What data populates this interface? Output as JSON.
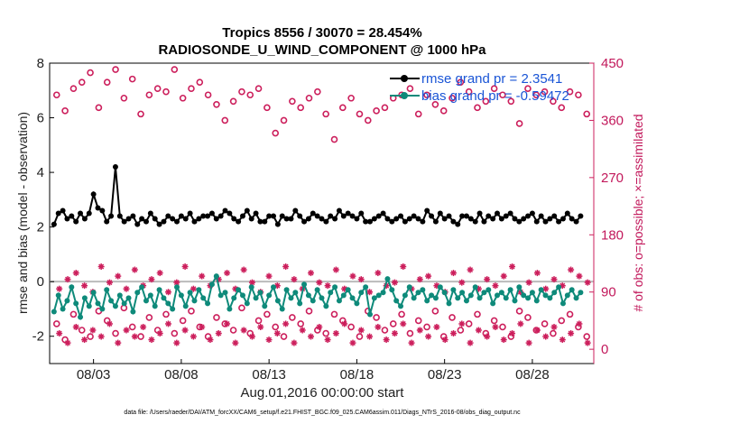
{
  "chart_data": {
    "type": "line",
    "title_line1": "Tropics 8556 / 30070 = 28.454%",
    "title_line2": "RADIOSONDE_U_WIND_COMPONENT @ 1000 hPa",
    "ylabel_left": "rmse and bias (model - observation)",
    "ylabel_right": "# of obs: o=possible; ×=assimilated",
    "xlabel": "Aug.01,2016 00:00:00 start",
    "footnote": "data file: /Users/raeder/DAI/ATM_forcXX/CAM6_setup/f.e21.FHIST_BGC.f09_025.CAM6assim.011/Diags_NTrS_2016-08/obs_diag_output.nc",
    "x_range_days": [
      0.5,
      31.5
    ],
    "x_ticks": [
      {
        "label": "08/03",
        "day": 3
      },
      {
        "label": "08/08",
        "day": 8
      },
      {
        "label": "08/13",
        "day": 13
      },
      {
        "label": "08/18",
        "day": 18
      },
      {
        "label": "08/23",
        "day": 23
      },
      {
        "label": "08/28",
        "day": 28
      }
    ],
    "y_left_range": [
      -3,
      8
    ],
    "y_left_ticks": [
      "-2",
      "0",
      "2",
      "4",
      "6",
      "8"
    ],
    "y_right_range": [
      -22.5,
      450
    ],
    "y_right_ticks": [
      "0",
      "90",
      "180",
      "270",
      "360",
      "450"
    ],
    "colors": {
      "rmse": "#000000",
      "bias": "#0e8a7a",
      "obs": "#cc1f5c",
      "zero_line": "#bbbbbb",
      "legend_text": "#1a55d6"
    },
    "legend": [
      {
        "name": "rmse grand pr = 2.3541",
        "color": "#000000"
      },
      {
        "name": "bias grand pr = -0.59472",
        "color": "#0e8a7a"
      }
    ],
    "series_x_start_day": 0.75,
    "series_x_step_day": 0.25,
    "series": [
      {
        "name": "rmse",
        "values": [
          2.1,
          2.5,
          2.6,
          2.3,
          2.4,
          2.2,
          2.5,
          2.3,
          2.5,
          3.2,
          2.7,
          2.6,
          2.2,
          2.4,
          4.2,
          2.4,
          2.2,
          2.3,
          2.4,
          2.1,
          2.3,
          2.2,
          2.5,
          2.3,
          2.1,
          2.2,
          2.4,
          2.3,
          2.2,
          2.4,
          2.3,
          2.5,
          2.2,
          2.3,
          2.4,
          2.4,
          2.5,
          2.3,
          2.4,
          2.6,
          2.5,
          2.3,
          2.2,
          2.4,
          2.6,
          2.3,
          2.5,
          2.2,
          2.2,
          2.4,
          2.4,
          2.1,
          2.4,
          2.3,
          2.3,
          2.6,
          2.4,
          2.2,
          2.3,
          2.5,
          2.4,
          2.3,
          2.2,
          2.4,
          2.3,
          2.6,
          2.4,
          2.5,
          2.4,
          2.3,
          2.5,
          2.2,
          2.2,
          2.3,
          2.4,
          2.5,
          2.3,
          2.2,
          2.3,
          2.4,
          2.2,
          2.3,
          2.4,
          2.3,
          2.2,
          2.6,
          2.4,
          2.2,
          2.5,
          2.3,
          2.4,
          2.2,
          2.1,
          2.4,
          2.4,
          2.3,
          2.2,
          2.5,
          2.2,
          2.4,
          2.3,
          2.5,
          2.3,
          2.4,
          2.5,
          2.3,
          2.2,
          2.3,
          2.4,
          2.5,
          2.2,
          2.4,
          2.2,
          2.3,
          2.4,
          2.2,
          2.3,
          2.5,
          2.3,
          2.2,
          2.4,
          2.3,
          2.2,
          2.3,
          2.2,
          2.3,
          2.4,
          2.2,
          2.6,
          2.3,
          2.2,
          2.4,
          2.5,
          2.3,
          2.2,
          2.3,
          2.1,
          2.4,
          2.4,
          2.3,
          2.2,
          2.3,
          2.4,
          2.4,
          2.5,
          2.2,
          2.4,
          2.4,
          2.3,
          2.4,
          2.2,
          2.4,
          2.3,
          2.4,
          2.2,
          2.5,
          2.2,
          2.3,
          2.2,
          2.5,
          2.3,
          2.2,
          2.2,
          2.5,
          2.3,
          2.2,
          2.5,
          2.3,
          2.4,
          2.3,
          2.2,
          2.4,
          2.4,
          2.3,
          2.3,
          2.3,
          2.4,
          2.4,
          2.5,
          2.2,
          2.3,
          2.4,
          2.3,
          2.4,
          2.2,
          2.2,
          2.4,
          2.4,
          2.2,
          2.3,
          2.4,
          2.4,
          2.3,
          2.3,
          2.3,
          2.5,
          2.4,
          2.3,
          2.4,
          2.2,
          2.4,
          2.3,
          2.3,
          2.4,
          2.3,
          2.3,
          2.3,
          2.4,
          2.4,
          2.3,
          2.3,
          2.4,
          2.4,
          2.3,
          2.3,
          2.4,
          2.6,
          2.4,
          2.3,
          2.4,
          2.3,
          2.4,
          2.3,
          2.3,
          2.3,
          2.4,
          2.3,
          2.5,
          2.2,
          2.3,
          2.2,
          2.4,
          2.4,
          2.3,
          2.5,
          2.4,
          2.3,
          2.3,
          2.2,
          2.4,
          2.3,
          2.3,
          2.4,
          2.2,
          2.5,
          2.4,
          2.3,
          2.3,
          2.3,
          2.4,
          2.3,
          2.3,
          2.4,
          2.5,
          2.3,
          2.2,
          2.3,
          2.4,
          2.3,
          2.3,
          2.2,
          2.5,
          2.4,
          2.3,
          2.3,
          2.4,
          2.2,
          2.3,
          2.4,
          2.4,
          2.3,
          2.3,
          2.5,
          2.4,
          2.4,
          2.2,
          2.3,
          2.4,
          2.4,
          2.3,
          2.3,
          2.4,
          2.2,
          2.4,
          2.3,
          2.3,
          2.2,
          2.3,
          2.3,
          2.4,
          2.4,
          2.3,
          2.2,
          2.3,
          2.4,
          2.3,
          2.4,
          2.2,
          2.3,
          2.3,
          2.3,
          2.4,
          2.3,
          2.3,
          2.4,
          2.3,
          2.4,
          2.3,
          2.2,
          2.4,
          2.3,
          2.3,
          2.3,
          2.4,
          2.2,
          2.3,
          2.3,
          2.4,
          2.4,
          2.3,
          2.3,
          2.3,
          2.2,
          2.3,
          2.4,
          2.3,
          2.4,
          2.3,
          2.3,
          2.4,
          2.3,
          2.3,
          2.3,
          2.2,
          2.3,
          2.4,
          2.4,
          2.3,
          2.4,
          2.3,
          2.3,
          2.4,
          2.3,
          2.3,
          2.3,
          2.4,
          2.3,
          2.4,
          2.2,
          2.3,
          2.4,
          2.3,
          2.3,
          2.3,
          2.3,
          2.4,
          2.3,
          2.4,
          2.3,
          2.4,
          2.2,
          2.3,
          2.3,
          2.4,
          2.4,
          2.3,
          2.3,
          2.4,
          2.3,
          2.3,
          2.2,
          2.3,
          2.4,
          2.3,
          2.3,
          2.4,
          2.3,
          2.4,
          2.3,
          2.2,
          2.3,
          2.4,
          2.3,
          2.3,
          2.3,
          2.4,
          2.3,
          2.3,
          2.4,
          2.3,
          2.3,
          2.3,
          2.4,
          2.3,
          2.3,
          2.2,
          2.3,
          2.4,
          2.3,
          2.3,
          2.3,
          2.4,
          2.3,
          2.3,
          2.3,
          2.4,
          2.3,
          2.3,
          2.4,
          2.3,
          2.3,
          2.3,
          2.3,
          2.4,
          2.3,
          2.3,
          2.3
        ]
      },
      {
        "name": "bias",
        "values": [
          -1.1,
          -0.5,
          -1.0,
          -0.7,
          -0.2,
          -0.8,
          -1.3,
          -0.6,
          -0.9,
          -0.4,
          -0.8,
          -1.0,
          -0.3,
          -0.7,
          -0.9,
          -0.5,
          -0.8,
          -0.6,
          -1.1,
          -0.4,
          -0.2,
          -0.7,
          -0.5,
          -0.9,
          -0.3,
          -0.6,
          -0.8,
          -1.0,
          -0.2,
          -0.5,
          -0.9,
          -0.4,
          -0.7,
          -0.3,
          -0.6,
          -0.8,
          -0.1,
          0.2,
          -0.5,
          -0.4,
          -1.0,
          -0.6,
          -0.3,
          -0.5,
          -0.8,
          -0.2,
          -0.6,
          -0.4,
          -0.9,
          -0.5,
          -0.2,
          -0.7,
          -1.0,
          -0.3,
          -0.6,
          -0.4,
          -0.8,
          -0.1,
          -0.5,
          -0.7,
          -0.3,
          -0.6,
          -0.9,
          -0.4,
          -0.2,
          -0.7,
          -0.5,
          -0.3,
          -0.6,
          -0.8,
          -0.4,
          -0.2,
          -1.2,
          -0.6,
          -0.5,
          -0.4,
          0.1,
          -0.3,
          -0.7,
          -0.9,
          -0.5,
          -0.2,
          -0.6,
          -0.4,
          -0.3,
          -0.7,
          -0.5,
          -0.6,
          -0.2,
          -0.4,
          -0.8,
          -0.3,
          -0.6,
          -0.4,
          -0.7,
          -0.5,
          -0.2,
          -0.6,
          -0.4,
          -0.3,
          -0.8,
          -0.5,
          -0.4,
          -0.6,
          -0.3,
          -0.7,
          -0.2,
          -0.5,
          -0.6,
          -0.4,
          -0.7,
          -0.3,
          -0.5,
          -0.6,
          -0.4,
          -0.2,
          -0.8,
          -0.5,
          -0.3,
          -0.6,
          -0.4,
          -0.7,
          -0.5,
          -0.3,
          -0.6,
          -0.4,
          -0.5,
          -0.7,
          -0.3,
          -0.5,
          -0.4,
          -0.6,
          -0.3,
          -0.5,
          -0.7,
          -0.4,
          -0.2,
          -0.6,
          -0.5,
          -0.4,
          -0.3,
          -0.7,
          -0.5,
          -0.4,
          -0.6,
          -0.3,
          -0.5,
          -0.4,
          -0.6,
          -0.5,
          -0.3,
          -0.4,
          -0.6,
          -0.5,
          -0.4,
          -0.3,
          -0.6,
          -0.5,
          -0.7,
          -0.4,
          -0.5,
          -0.3,
          -0.6,
          -0.4,
          -0.5,
          -0.6,
          -0.4,
          -0.3,
          -0.5,
          -0.6,
          -0.4,
          -0.5,
          -0.3,
          -0.6,
          -0.4,
          -0.5,
          -0.4,
          -0.6,
          -0.3,
          -0.5,
          -0.4,
          -0.6,
          -0.5,
          -0.3,
          -0.4,
          -0.6,
          -0.5,
          -0.4,
          -0.5,
          -0.3,
          -0.6,
          -0.4,
          -0.5,
          -0.4,
          -0.6,
          -0.5,
          -0.3,
          -0.4,
          -0.5,
          -0.6,
          -0.4,
          -0.5,
          -0.3,
          -0.6,
          -0.4,
          -0.5,
          -0.4,
          -0.6,
          -0.5,
          -0.4,
          -0.3,
          -0.5,
          -0.6,
          -0.4,
          -0.5,
          -0.4,
          -0.3,
          -0.6,
          -0.5,
          -0.4,
          -0.5,
          -0.6,
          -0.4,
          -0.3,
          -0.5,
          -0.4,
          -0.6,
          -0.5,
          -0.4,
          -0.3,
          -0.5,
          -0.6,
          -0.4,
          -0.5,
          -0.4,
          -0.6,
          -0.3,
          -0.5,
          -0.4,
          -0.5,
          -0.6,
          -0.4,
          -0.3,
          -0.5,
          -0.4,
          -0.6,
          -0.5,
          -0.4,
          -0.5,
          -0.3,
          -0.6,
          -0.4,
          -0.5,
          -0.4,
          -0.6,
          -0.5,
          -0.3,
          -0.4,
          -0.5,
          -0.6,
          -0.4,
          -0.5,
          -0.3,
          -0.4,
          -0.6,
          -0.5,
          -0.4,
          -0.5,
          -0.3,
          -0.6,
          -0.4,
          -0.5,
          -0.4,
          -0.6,
          -0.5,
          -0.3,
          -0.4,
          -0.5,
          -0.6,
          -0.4,
          -0.5,
          -0.3,
          -0.6,
          -0.4,
          -0.5,
          -0.4,
          -0.6,
          -0.5,
          -0.3,
          -0.4,
          -0.5,
          -0.6,
          -0.4,
          -0.5,
          -0.3,
          -0.6,
          -0.4,
          -0.5,
          -0.4,
          -0.6,
          -0.5,
          -0.3,
          -0.4,
          -0.5,
          -0.6,
          -0.4,
          -0.5,
          -0.3,
          -0.6,
          -0.4,
          -0.5,
          -0.4,
          -0.6,
          -0.5,
          -0.3,
          -0.4,
          -0.5,
          -0.6,
          -0.4,
          -0.5,
          -0.3,
          -0.6,
          -0.4,
          -0.5,
          -0.4,
          -0.6,
          -0.5,
          -0.3,
          -0.4,
          -0.5,
          -0.6,
          -0.4,
          -0.5,
          -0.3,
          -0.6,
          -0.4,
          -0.5,
          -0.4,
          -0.6,
          -0.5,
          -0.3,
          -0.4,
          -0.5,
          -0.6,
          -0.4,
          -0.5,
          -0.3,
          -0.6,
          -0.4,
          -0.5,
          -0.4,
          -0.6,
          -0.5,
          -0.3,
          -0.4,
          -0.5,
          -0.6,
          -0.4,
          -0.5,
          -0.3,
          -0.6,
          -0.4,
          -0.5,
          -0.4,
          -0.6,
          -0.5,
          -0.3,
          -0.4,
          -0.5,
          -0.6,
          -0.4,
          -0.5,
          -0.3,
          -0.6,
          -0.4,
          -0.5,
          -0.4,
          -0.6,
          -0.5,
          -0.3,
          -0.4,
          -0.5
        ]
      },
      {
        "name": "obs_possible",
        "values": [
          400,
          375,
          410,
          420,
          435,
          380,
          420,
          440,
          395,
          425,
          370,
          400,
          410,
          405,
          440,
          395,
          410,
          420,
          400,
          385,
          360,
          390,
          405,
          400,
          410,
          380,
          340,
          360,
          390,
          380,
          395,
          405,
          370,
          330,
          380,
          395,
          370,
          360,
          375,
          380,
          395,
          400,
          410,
          370,
          400,
          385,
          375,
          395,
          420,
          405,
          380,
          390,
          410,
          400,
          390,
          355,
          410,
          400,
          405,
          390,
          380,
          405,
          400,
          370
        ]
      },
      {
        "name": "obs_possible_low",
        "values": [
          40,
          15,
          55,
          30,
          20,
          60,
          45,
          25,
          65,
          35,
          20,
          50,
          30,
          55,
          25,
          45,
          60,
          35,
          20,
          50,
          40,
          30,
          65,
          25,
          45,
          55,
          35,
          20,
          50,
          40,
          60,
          30,
          25,
          55,
          45,
          35,
          20,
          60,
          50,
          30,
          40,
          55,
          25,
          45,
          35,
          60,
          20,
          50,
          30,
          40,
          55,
          25,
          45,
          35,
          20,
          60,
          50,
          30,
          40,
          25,
          45,
          55,
          35,
          20
        ]
      },
      {
        "name": "obs_assimilated",
        "values": [
          95,
          110,
          120,
          100,
          90,
          130,
          105,
          115,
          95,
          125,
          100,
          110,
          120,
          90,
          105,
          130,
          95,
          115,
          100,
          110,
          120,
          95,
          125,
          105,
          90,
          115,
          100,
          130,
          110,
          95,
          120,
          105,
          100,
          125,
          95,
          115,
          110,
          90,
          120,
          100,
          105,
          130,
          95,
          110,
          115,
          100,
          90,
          120,
          105,
          125,
          95,
          110,
          100,
          115,
          130,
          90,
          105,
          120,
          95,
          110,
          100,
          125,
          115,
          105
        ]
      },
      {
        "name": "obs_assimilated_low",
        "values": [
          25,
          10,
          35,
          15,
          30,
          20,
          40,
          10,
          30,
          20,
          35,
          15,
          25,
          40,
          10,
          30,
          20,
          35,
          15,
          25,
          40,
          10,
          30,
          20,
          35,
          15,
          25,
          40,
          10,
          30,
          20,
          35,
          15,
          25,
          40,
          10,
          30,
          20,
          35,
          15,
          25,
          40,
          10,
          30,
          20,
          35,
          15,
          25,
          40,
          10,
          30,
          20,
          35,
          15,
          25,
          40,
          10,
          30,
          20,
          35,
          15,
          25,
          40,
          10
        ]
      }
    ]
  }
}
